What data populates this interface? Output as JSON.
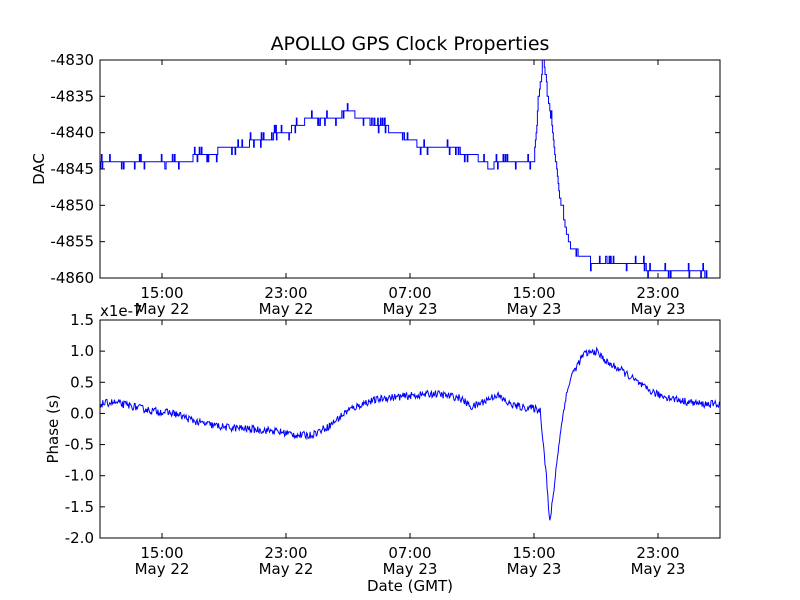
{
  "title": "APOLLO GPS Clock Properties",
  "xlabel": "Date (GMT)",
  "x_ticks": [
    {
      "pos": 0.1,
      "time": "15:00",
      "date": "May 22"
    },
    {
      "pos": 0.3,
      "time": "23:00",
      "date": "May 22"
    },
    {
      "pos": 0.5,
      "time": "07:00",
      "date": "May 23"
    },
    {
      "pos": 0.7,
      "time": "15:00",
      "date": "May 23"
    },
    {
      "pos": 0.9,
      "time": "23:00",
      "date": "May 23"
    }
  ],
  "chart_data": [
    {
      "type": "line",
      "ylabel": "DAC",
      "ylim": [
        -4860,
        -4830
      ],
      "yticks": [
        "-4830",
        "-4835",
        "-4840",
        "-4845",
        "-4850",
        "-4855",
        "-4860"
      ],
      "ytick_values": [
        -4830,
        -4835,
        -4840,
        -4845,
        -4850,
        -4855,
        -4860
      ],
      "grid": false,
      "color": "#0000ff",
      "series": [
        {
          "name": "DAC",
          "x": [
            0.0,
            0.02,
            0.06,
            0.08,
            0.14,
            0.16,
            0.22,
            0.26,
            0.3,
            0.32,
            0.34,
            0.38,
            0.4,
            0.42,
            0.45,
            0.48,
            0.5,
            0.52,
            0.56,
            0.6,
            0.62,
            0.63,
            0.64,
            0.66,
            0.7,
            0.7,
            0.705,
            0.71,
            0.715,
            0.72,
            0.73,
            0.74,
            0.75,
            0.76,
            0.78,
            0.8,
            0.82,
            0.86,
            0.9,
            0.95,
            1.0
          ],
          "values": [
            -4844,
            -4844,
            -4844,
            -4844,
            -4844,
            -4843,
            -4842,
            -4841,
            -4840,
            -4839,
            -4838,
            -4838,
            -4837,
            -4838,
            -4839,
            -4840,
            -4841,
            -4842,
            -4842,
            -4843,
            -4844,
            -4845,
            -4844,
            -4844,
            -4844,
            -4843,
            -4838,
            -4833,
            -4830,
            -4833,
            -4840,
            -4848,
            -4853,
            -4856,
            -4857,
            -4858,
            -4858,
            -4858,
            -4859,
            -4859,
            -4860
          ]
        }
      ]
    },
    {
      "type": "line",
      "ylabel": "Phase (s)",
      "offset_text": "x1e-7",
      "ylim": [
        -2.0,
        1.5
      ],
      "yticks": [
        "1.5",
        "1.0",
        "0.5",
        "0.0",
        "-0.5",
        "-1.0",
        "-1.5",
        "-2.0"
      ],
      "ytick_values": [
        1.5,
        1.0,
        0.5,
        0.0,
        -0.5,
        -1.0,
        -1.5,
        -2.0
      ],
      "grid": false,
      "color": "#0000ff",
      "series": [
        {
          "name": "Phase",
          "x": [
            0.0,
            0.02,
            0.05,
            0.08,
            0.12,
            0.16,
            0.2,
            0.24,
            0.28,
            0.32,
            0.34,
            0.37,
            0.4,
            0.43,
            0.46,
            0.5,
            0.54,
            0.58,
            0.6,
            0.64,
            0.66,
            0.68,
            0.7,
            0.71,
            0.72,
            0.725,
            0.73,
            0.74,
            0.75,
            0.76,
            0.78,
            0.8,
            0.82,
            0.84,
            0.86,
            0.88,
            0.9,
            0.94,
            0.97,
            1.0
          ],
          "values": [
            0.15,
            0.18,
            0.12,
            0.05,
            0.0,
            -0.15,
            -0.22,
            -0.25,
            -0.28,
            -0.35,
            -0.35,
            -0.2,
            0.05,
            0.18,
            0.25,
            0.28,
            0.32,
            0.25,
            0.1,
            0.3,
            0.15,
            0.1,
            0.08,
            0.05,
            -1.0,
            -1.78,
            -1.4,
            -0.5,
            0.2,
            0.6,
            0.95,
            1.0,
            0.8,
            0.7,
            0.55,
            0.4,
            0.3,
            0.2,
            0.15,
            0.15
          ]
        }
      ]
    }
  ]
}
